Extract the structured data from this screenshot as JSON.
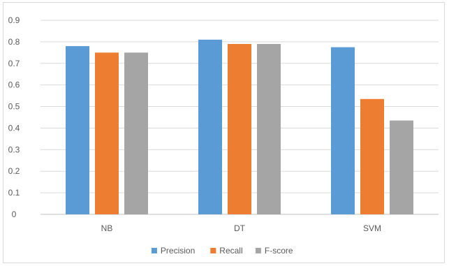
{
  "chart_data": {
    "type": "bar",
    "categories": [
      "NB",
      "DT",
      "SVM"
    ],
    "series": [
      {
        "name": "Precision",
        "color": "#5b9bd5",
        "values": [
          0.78,
          0.81,
          0.775
        ]
      },
      {
        "name": "Recall",
        "color": "#ed7d31",
        "values": [
          0.75,
          0.79,
          0.535
        ]
      },
      {
        "name": "F-score",
        "color": "#a5a5a5",
        "values": [
          0.75,
          0.79,
          0.435
        ]
      }
    ],
    "ylim": [
      0,
      0.9
    ],
    "yticks": [
      "0",
      "0.1",
      "0.2",
      "0.3",
      "0.4",
      "0.5",
      "0.6",
      "0.7",
      "0.8",
      "0.9"
    ],
    "grid": true,
    "legend_position": "bottom",
    "title": "",
    "xlabel": "",
    "ylabel": ""
  }
}
